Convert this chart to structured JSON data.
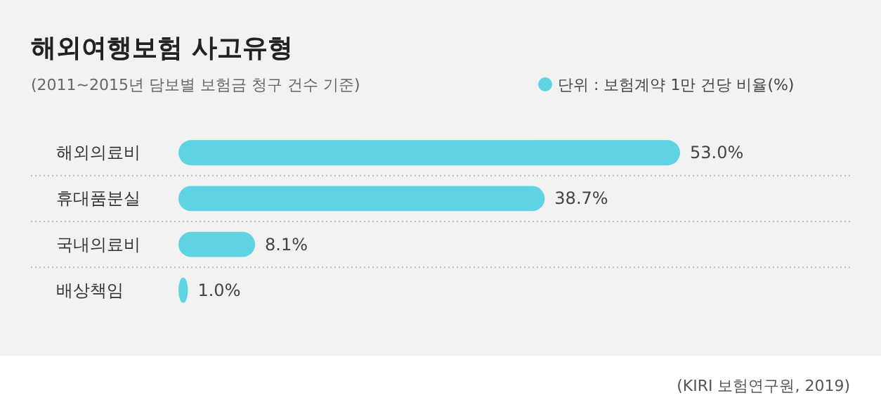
{
  "chart_data": {
    "type": "bar",
    "orientation": "horizontal",
    "title": "해외여행보험 사고유형",
    "subtitle": "(2011~2015년 담보별 보험금 청구 건수 기준)",
    "categories": [
      "해외의료비",
      "휴대품분실",
      "국내의료비",
      "배상책임"
    ],
    "series": [
      {
        "name": "단위 : 보험계약 1만 건당 비율(%)",
        "color": "#5fd4e3",
        "values": [
          53.0,
          38.7,
          8.1,
          1.0
        ],
        "value_labels": [
          "53.0%",
          "38.7%",
          "8.1%",
          "1.0%"
        ]
      }
    ],
    "legend": "top right",
    "annotations": [
      "(KIRI 보험연구원, 2019)"
    ]
  }
}
